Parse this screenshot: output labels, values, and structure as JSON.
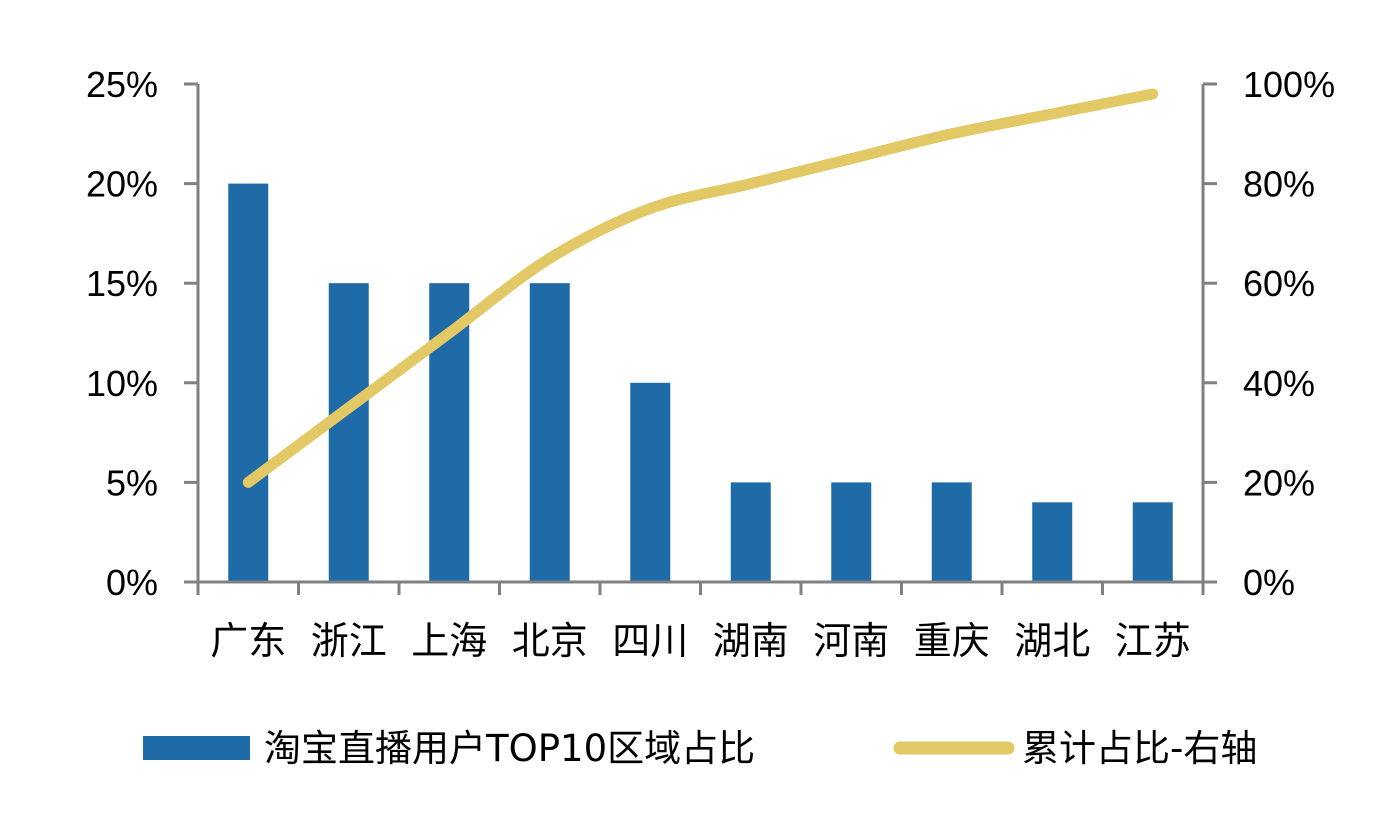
{
  "chart_data": {
    "type": "bar",
    "categories": [
      "广东",
      "浙江",
      "上海",
      "北京",
      "四川",
      "湖南",
      "河南",
      "重庆",
      "湖北",
      "江苏"
    ],
    "series": [
      {
        "name": "淘宝直播用户TOP10区域占比",
        "type": "bar",
        "axis": "left",
        "color": "#1f6ba7",
        "values": [
          20,
          15,
          15,
          15,
          10,
          5,
          5,
          5,
          4,
          4
        ]
      },
      {
        "name": "累计占比-右轴",
        "type": "line",
        "axis": "right",
        "color": "#e3c866",
        "values": [
          20,
          35,
          50,
          65,
          75,
          80,
          85,
          90,
          94,
          98
        ]
      }
    ],
    "y_left": {
      "ticks": [
        "0%",
        "5%",
        "10%",
        "15%",
        "20%",
        "25%"
      ],
      "range": [
        0,
        25
      ]
    },
    "y_right": {
      "ticks": [
        "0%",
        "20%",
        "40%",
        "60%",
        "80%",
        "100%"
      ],
      "range": [
        0,
        100
      ]
    },
    "grid": false,
    "legend_position": "bottom"
  }
}
